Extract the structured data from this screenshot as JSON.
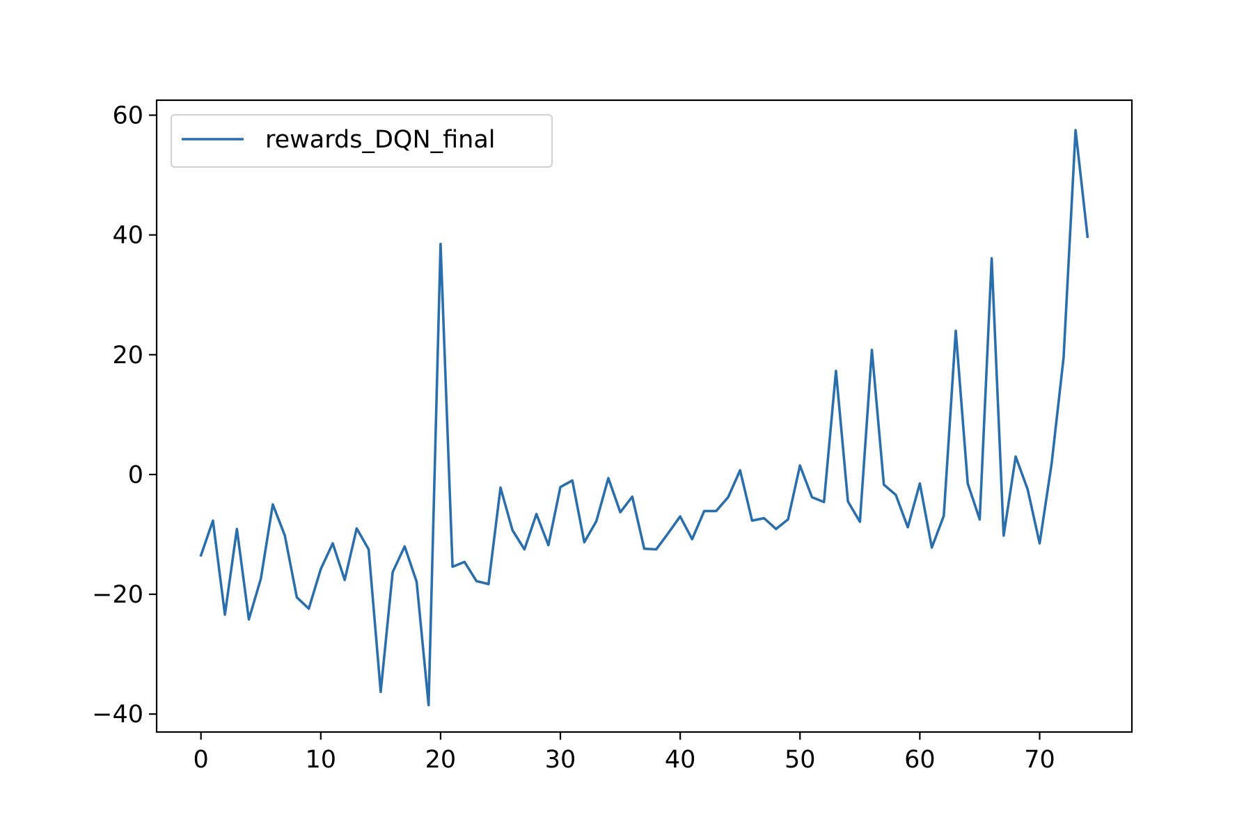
{
  "chart_data": {
    "type": "line",
    "title": "",
    "xlabel": "",
    "ylabel": "",
    "xlim": [
      -3.7,
      77.7
    ],
    "ylim": [
      -43.0,
      62.5
    ],
    "xticks": [
      0,
      10,
      20,
      30,
      40,
      50,
      60,
      70
    ],
    "yticks": [
      -40,
      -20,
      0,
      20,
      40,
      60
    ],
    "xtick_labels": [
      "0",
      "10",
      "20",
      "30",
      "40",
      "50",
      "60",
      "70"
    ],
    "ytick_labels": [
      "−40",
      "−20",
      "0",
      "20",
      "40",
      "60"
    ],
    "grid": false,
    "legend_position": "top-left",
    "series": [
      {
        "name": "rewards_DQN_final",
        "color": "#2a6fac",
        "x": [
          0,
          1,
          2,
          3,
          4,
          5,
          6,
          7,
          8,
          9,
          10,
          11,
          12,
          13,
          14,
          15,
          16,
          17,
          18,
          19,
          20,
          21,
          22,
          23,
          24,
          25,
          26,
          27,
          28,
          29,
          30,
          31,
          32,
          33,
          34,
          35,
          36,
          37,
          38,
          39,
          40,
          41,
          42,
          43,
          44,
          45,
          46,
          47,
          48,
          49,
          50,
          51,
          52,
          53,
          54,
          55,
          56,
          57,
          58,
          59,
          60,
          61,
          62,
          63,
          64,
          65,
          66,
          67,
          68,
          69,
          70,
          71,
          72,
          73,
          74
        ],
        "values": [
          -13.5,
          -7.7,
          -23.4,
          -9.1,
          -24.2,
          -17.4,
          -5.0,
          -10.2,
          -20.5,
          -22.4,
          -15.8,
          -11.5,
          -17.6,
          -9.0,
          -12.5,
          -36.3,
          -16.3,
          -12.0,
          -17.9,
          -38.5,
          38.5,
          -15.4,
          -14.6,
          -17.8,
          -18.3,
          -2.2,
          -9.3,
          -12.5,
          -6.6,
          -11.8,
          -2.1,
          -1.0,
          -11.3,
          -7.8,
          -0.6,
          -6.3,
          -3.7,
          -12.4,
          -12.5,
          -9.8,
          -7.0,
          -10.8,
          -6.1,
          -6.1,
          -3.8,
          0.7,
          -7.7,
          -7.3,
          -9.1,
          -7.5,
          1.5,
          -3.8,
          -4.6,
          17.3,
          -4.5,
          -7.9,
          20.8,
          -1.7,
          -3.4,
          -8.8,
          -1.5,
          -12.2,
          -6.9,
          24.0,
          -1.5,
          -7.5,
          36.1,
          -10.2,
          3.0,
          -2.5,
          -11.5,
          1.8,
          19.5,
          57.5,
          39.7
        ]
      }
    ]
  }
}
